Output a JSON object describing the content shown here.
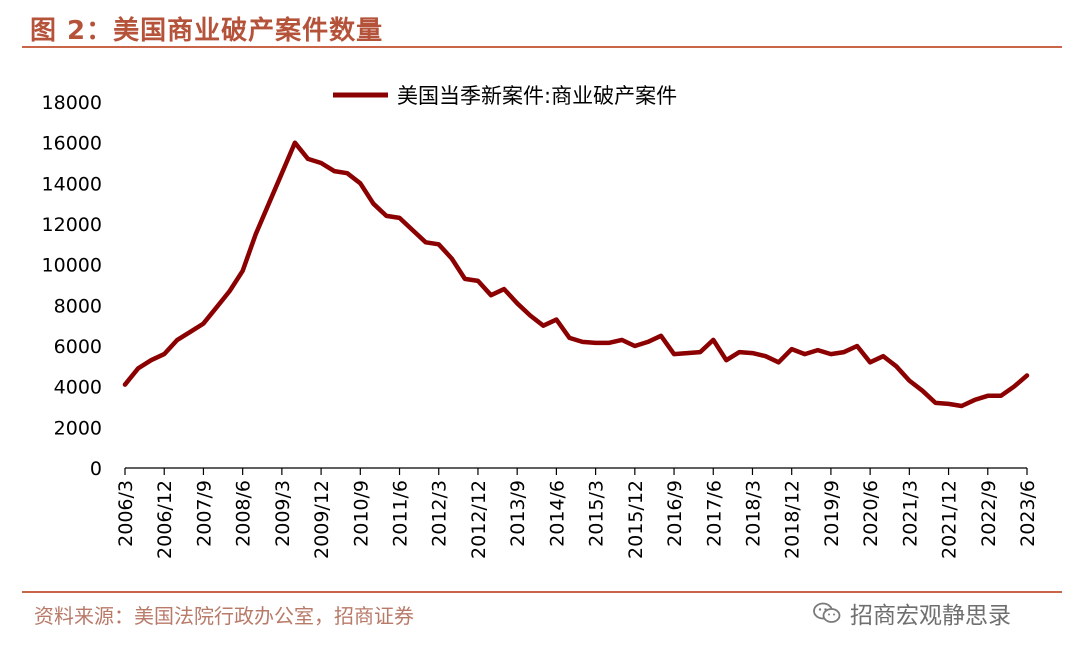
{
  "title": "图 2：美国商业破产案件数量",
  "source": "资料来源：美国法院行政办公室，招商证券",
  "watermark": "招商宏观静思录",
  "colors": {
    "series": "#8b0000",
    "accent": "#c9664a",
    "title": "#b5533a"
  },
  "icons": {
    "watermark": "wechat-icon"
  },
  "chart_data": {
    "type": "line",
    "legend": {
      "position": "top-center",
      "entries": [
        "美国当季新案件:商业破产案件"
      ]
    },
    "ylim": [
      0,
      18000
    ],
    "y_ticks": [
      0,
      2000,
      4000,
      6000,
      8000,
      10000,
      12000,
      14000,
      16000,
      18000
    ],
    "x_tick_labels": [
      "2006/3",
      "2006/12",
      "2007/9",
      "2008/6",
      "2009/3",
      "2009/12",
      "2010/9",
      "2011/6",
      "2012/3",
      "2012/12",
      "2013/9",
      "2014/6",
      "2015/3",
      "2015/12",
      "2016/9",
      "2017/6",
      "2018/3",
      "2018/12",
      "2019/9",
      "2020/6",
      "2021/3",
      "2021/12",
      "2022/9",
      "2023/6"
    ],
    "series": [
      {
        "name": "美国当季新案件:商业破产案件",
        "x": [
          "2006/3",
          "2006/6",
          "2006/9",
          "2006/12",
          "2007/3",
          "2007/6",
          "2007/9",
          "2007/12",
          "2008/3",
          "2008/6",
          "2008/9",
          "2008/12",
          "2009/3",
          "2009/6",
          "2009/9",
          "2009/12",
          "2010/3",
          "2010/6",
          "2010/9",
          "2010/12",
          "2011/3",
          "2011/6",
          "2011/9",
          "2011/12",
          "2012/3",
          "2012/6",
          "2012/9",
          "2012/12",
          "2013/3",
          "2013/6",
          "2013/9",
          "2013/12",
          "2014/3",
          "2014/6",
          "2014/9",
          "2014/12",
          "2015/3",
          "2015/6",
          "2015/9",
          "2015/12",
          "2016/3",
          "2016/6",
          "2016/9",
          "2016/12",
          "2017/3",
          "2017/6",
          "2017/9",
          "2017/12",
          "2018/3",
          "2018/6",
          "2018/9",
          "2018/12",
          "2019/3",
          "2019/6",
          "2019/9",
          "2019/12",
          "2020/3",
          "2020/6",
          "2020/9",
          "2020/12",
          "2021/3",
          "2021/6",
          "2021/9",
          "2021/12",
          "2022/3",
          "2022/6",
          "2022/9",
          "2022/12",
          "2023/3",
          "2023/6"
        ],
        "values": [
          4100,
          4900,
          5300,
          5600,
          6300,
          6700,
          7100,
          7900,
          8700,
          9700,
          11500,
          13000,
          14500,
          16000,
          15200,
          15000,
          14600,
          14500,
          14000,
          13000,
          12400,
          12300,
          11700,
          11100,
          11000,
          10300,
          9300,
          9200,
          8500,
          8800,
          8100,
          7500,
          7000,
          7300,
          6400,
          6200,
          6150,
          6150,
          6300,
          6000,
          6200,
          6500,
          5600,
          5650,
          5700,
          6300,
          5300,
          5700,
          5650,
          5500,
          5200,
          5850,
          5600,
          5800,
          5600,
          5700,
          6000,
          5200,
          5500,
          5000,
          4300,
          3800,
          3200,
          3150,
          3050,
          3350,
          3550,
          3550,
          4000,
          4550
        ]
      }
    ]
  }
}
